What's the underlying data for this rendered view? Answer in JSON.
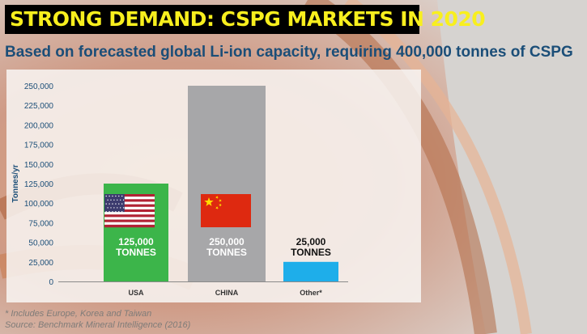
{
  "header": {
    "title": "STRONG DEMAND: CSPG MARKETS IN 2020",
    "subtitle": "Based on forecasted global Li-ion capacity, requiring 400,000 tonnes of CSPG"
  },
  "chart_data": {
    "type": "bar",
    "categories": [
      "USA",
      "CHINA",
      "Other*"
    ],
    "values": [
      125000,
      250000,
      25000
    ],
    "value_labels": [
      [
        "125,000",
        "TONNES"
      ],
      [
        "250,000",
        "TONNES"
      ],
      [
        "25,000",
        "TONNES"
      ]
    ],
    "ylabel": "Tonnes/yr",
    "xlabel": "",
    "ylim": [
      0,
      250000
    ],
    "yticks": [
      0,
      25000,
      50000,
      75000,
      100000,
      125000,
      150000,
      175000,
      200000,
      225000,
      250000
    ],
    "ytick_labels": [
      "0",
      "25,000",
      "50,000",
      "75,000",
      "100,000",
      "125,000",
      "150,000",
      "175,000",
      "200,000",
      "225,000",
      "250,000"
    ],
    "bar_colors": [
      "#3cb54a",
      "#a7a7a9",
      "#1eaeea"
    ],
    "flags": [
      "usa-flag-icon",
      "china-flag-icon",
      ""
    ],
    "grid": false,
    "legend": "none"
  },
  "footnotes": {
    "note": "* Includes Europe, Korea and Taiwan",
    "source": "Source: Benchmark Mineral Intelligence (2016)"
  },
  "colors": {
    "title_bg": "#000000",
    "title_text": "#f8ef1e",
    "subtitle_text": "#1b4e78",
    "axis_text": "#1b4e78"
  }
}
